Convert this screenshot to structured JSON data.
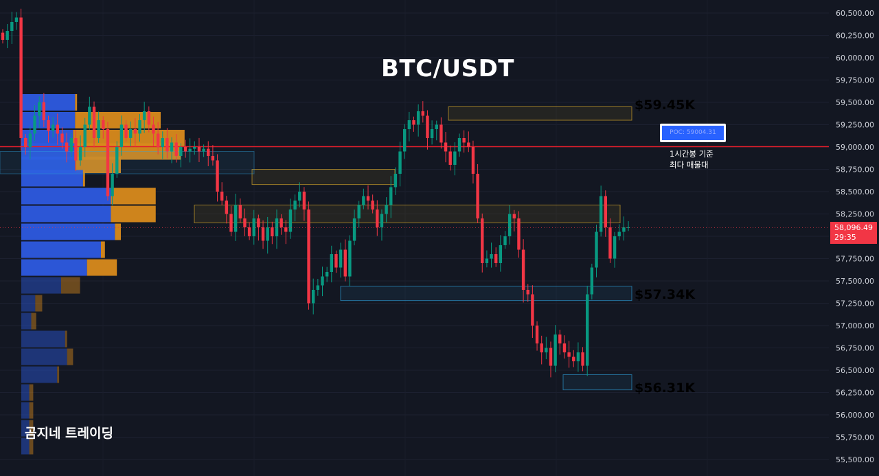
{
  "title": "BTC/USDT",
  "watermark": "곰지네 트레이딩",
  "colors": {
    "bg": "#131722",
    "up": "#089981",
    "down": "#f23645",
    "accent_gold": "#f0b92c",
    "accent_blue": "#2ea8e6",
    "profile_blue": "#2d5ae0",
    "profile_orange": "#d88a1c"
  },
  "levels": [
    {
      "label": "$59.45K",
      "color": "#f0b92c"
    },
    {
      "label": "$57.34K",
      "color": "#2ea8e6"
    },
    {
      "label": "$56.31K",
      "color": "#2ea8e6"
    }
  ],
  "poc": {
    "label": "POC: 59004.31",
    "note_line1": "1시간봉 기준",
    "note_line2": "최다 매물대"
  },
  "last_price": {
    "price": "58,096.49",
    "countdown": "29:35"
  },
  "chart_data": {
    "type": "candlestick",
    "title": "BTC/USDT",
    "y_axis": {
      "ticks": [
        60500,
        60250,
        60000,
        59750,
        59500,
        59250,
        59000,
        58750,
        58500,
        58250,
        58000,
        57750,
        57500,
        57250,
        57000,
        56750,
        56500,
        56250,
        56000,
        55750,
        55500
      ],
      "tick_labels": [
        "60,500.00",
        "60,250.00",
        "60,000.00",
        "59,750.00",
        "59,500.00",
        "59,250.00",
        "59,000.00",
        "58,750.00",
        "58,500.00",
        "58,250.00",
        "58,000.00",
        "57,750.00",
        "57,500.00",
        "57,250.00",
        "57,000.00",
        "56,750.00",
        "56,500.00",
        "56,250.00",
        "56,000.00",
        "55,750.00",
        "55,500.00"
      ],
      "ylim": [
        55430,
        60590
      ],
      "side": "right"
    },
    "poc_price": 59004.31,
    "last_price": 58096.49,
    "closes": [
      60200,
      60300,
      60400,
      60450,
      59100,
      59000,
      59150,
      59350,
      59500,
      59300,
      59180,
      59250,
      59150,
      59050,
      58950,
      59100,
      58850,
      59000,
      59250,
      59450,
      59100,
      59300,
      59200,
      58450,
      58700,
      59000,
      59250,
      59100,
      59200,
      59150,
      59300,
      59400,
      59250,
      59150,
      59000,
      59100,
      58950,
      59050,
      58900,
      59000,
      58950,
      58980,
      59000,
      58950,
      58980,
      58900,
      58850,
      58500,
      58400,
      58250,
      58050,
      58350,
      58200,
      58100,
      58000,
      58200,
      58100,
      57950,
      58100,
      58000,
      58200,
      58100,
      58050,
      58300,
      58400,
      58500,
      58300,
      57250,
      57400,
      57450,
      57550,
      57600,
      57800,
      57650,
      57850,
      57550,
      57950,
      58200,
      58350,
      58450,
      58400,
      58300,
      58100,
      58250,
      58350,
      58550,
      58700,
      58950,
      59200,
      59300,
      59250,
      59400,
      59350,
      59100,
      59200,
      59250,
      59050,
      58950,
      58800,
      58950,
      59100,
      59050,
      59000,
      58700,
      58200,
      57700,
      57750,
      57800,
      57700,
      57900,
      58000,
      58250,
      58200,
      57850,
      57400,
      57350,
      57000,
      56800,
      56700,
      56750,
      56550,
      56900,
      56800,
      56700,
      56650,
      56600,
      56700,
      56550,
      57350,
      57650,
      58050,
      58450,
      58100,
      57750,
      58000,
      58050,
      58100,
      58100
    ],
    "zones": [
      {
        "top": 59450,
        "bottom": 59300,
        "color": "gold"
      },
      {
        "top": 58750,
        "bottom": 58580,
        "color": "gold"
      },
      {
        "top": 58350,
        "bottom": 58150,
        "color": "gold"
      },
      {
        "top": 57440,
        "bottom": 57280,
        "color": "blue"
      },
      {
        "top": 56450,
        "bottom": 56280,
        "color": "blue"
      }
    ],
    "volume_profile": [
      {
        "price": 59500,
        "buy": 0.27,
        "sell": 0.28
      },
      {
        "price": 59300,
        "buy": 0.27,
        "sell": 0.7
      },
      {
        "price": 59100,
        "buy": 0.26,
        "sell": 0.82
      },
      {
        "price": 58950,
        "buy": 0.27,
        "sell": 0.8
      },
      {
        "price": 58800,
        "buy": 0.27,
        "sell": 0.5
      },
      {
        "price": 58650,
        "buy": 0.31,
        "sell": 0.32
      },
      {
        "price": 58450,
        "buy": 0.45,
        "sell": 0.45
      },
      {
        "price": 58250,
        "buy": 0.45,
        "sell": 0.45
      },
      {
        "price": 58050,
        "buy": 0.47,
        "sell": 0.5
      },
      {
        "price": 57850,
        "buy": 0.4,
        "sell": 0.42
      },
      {
        "price": 57650,
        "buy": 0.33,
        "sell": 0.3
      },
      {
        "price": 57450,
        "buy": 0.2,
        "sell": 0.19
      },
      {
        "price": 57250,
        "buy": 0.07,
        "sell": 0.07
      },
      {
        "price": 57050,
        "buy": 0.05,
        "sell": 0.05
      },
      {
        "price": 56850,
        "buy": 0.22,
        "sell": 0.23
      },
      {
        "price": 56650,
        "buy": 0.23,
        "sell": 0.26
      },
      {
        "price": 56450,
        "buy": 0.18,
        "sell": 0.19
      },
      {
        "price": 56250,
        "buy": 0.04,
        "sell": 0.04
      },
      {
        "price": 56050,
        "buy": 0.04,
        "sell": 0.04
      },
      {
        "price": 55850,
        "buy": 0.04,
        "sell": 0.04
      },
      {
        "price": 55650,
        "buy": 0.04,
        "sell": 0.04
      }
    ]
  }
}
